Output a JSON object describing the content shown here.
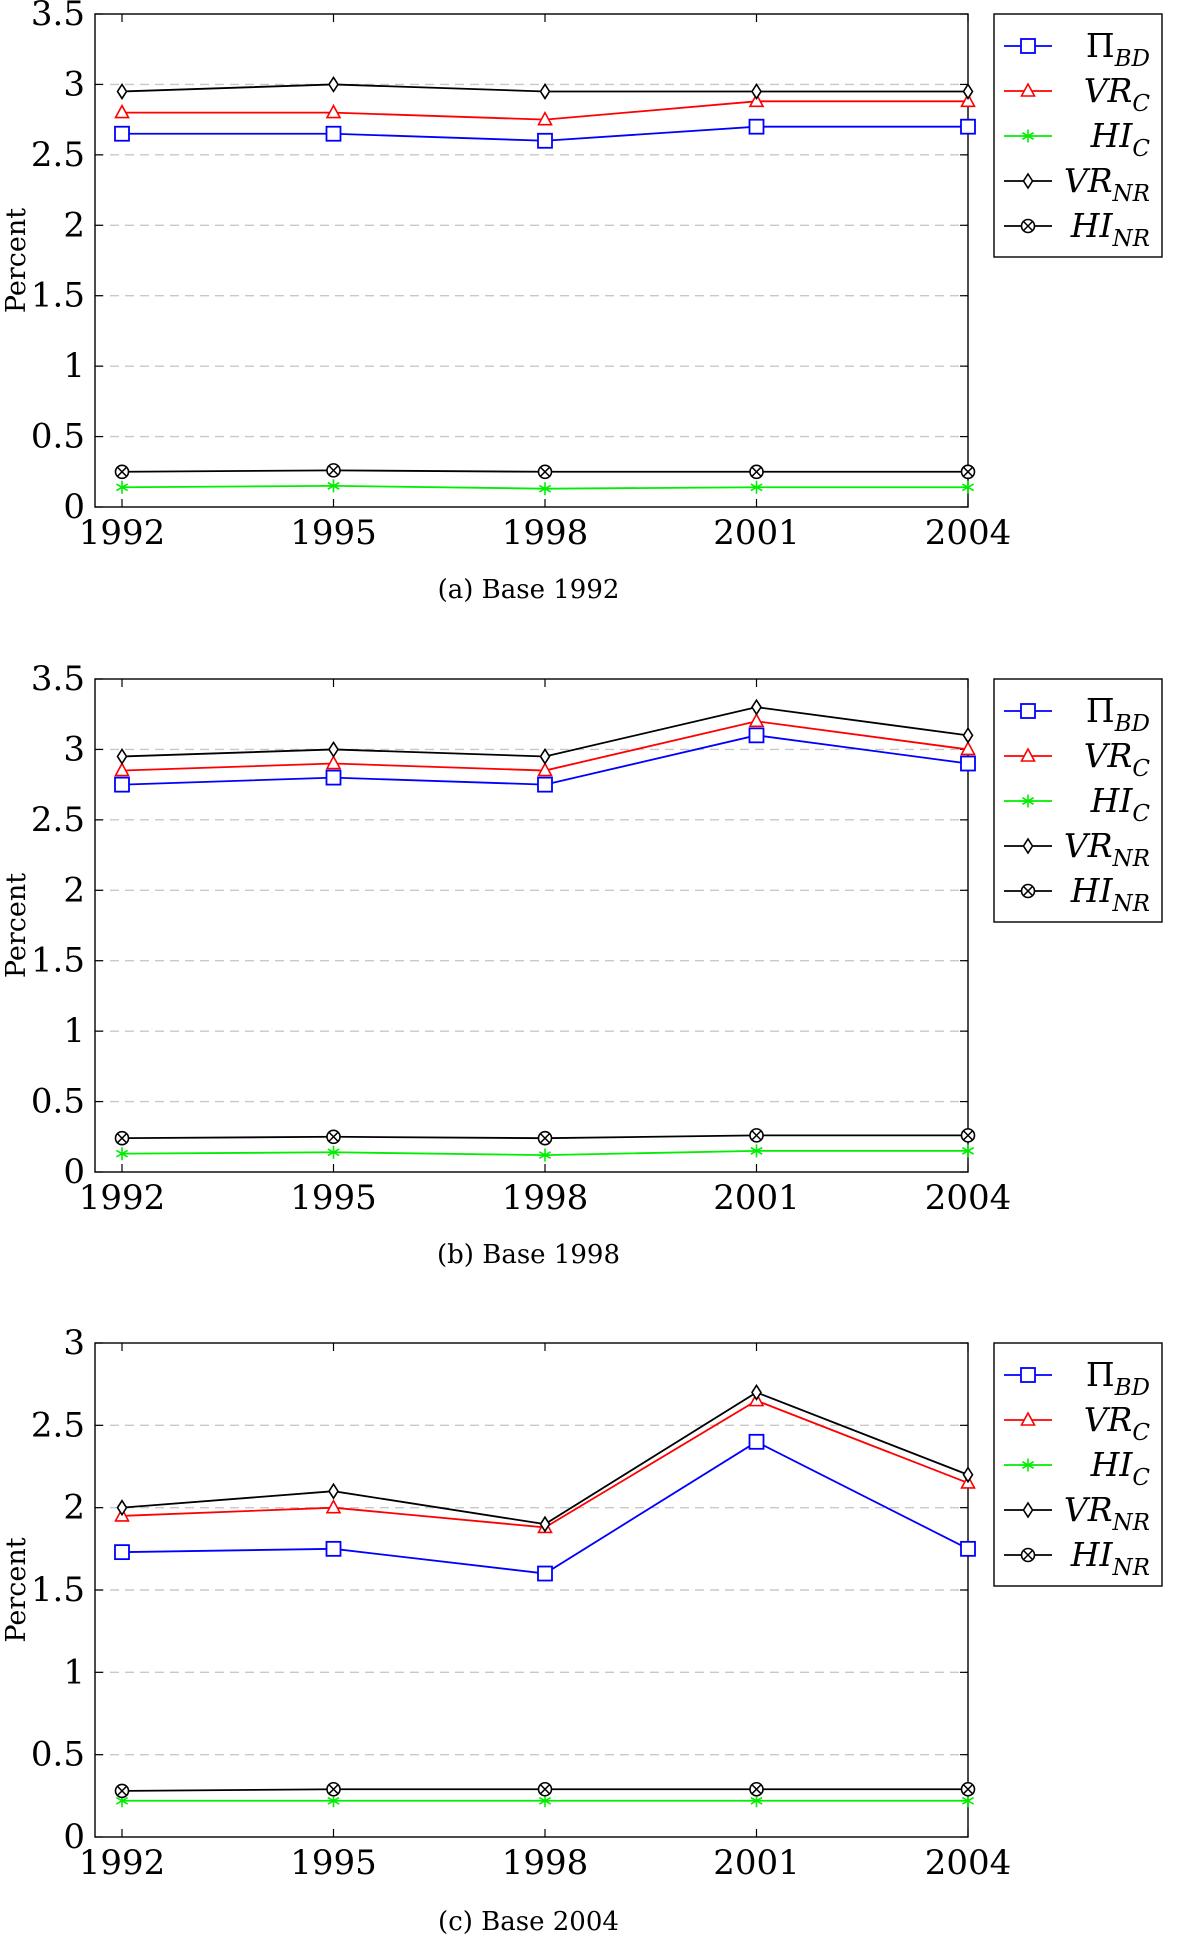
{
  "chart_data": [
    {
      "type": "line",
      "caption": "(a) Base 1992",
      "ylabel": "Percent",
      "x": [
        1992,
        1995,
        1998,
        2001,
        2004
      ],
      "ylim": [
        0,
        3.5
      ],
      "yticks": [
        0,
        0.5,
        1,
        1.5,
        2,
        2.5,
        3,
        3.5
      ],
      "ytick_labels": [
        "0",
        "0.5",
        "1",
        "1.5",
        "2",
        "2.5",
        "3",
        "3.5"
      ],
      "xtick_labels": [
        "1992",
        "1995",
        "1998",
        "2001",
        "2004"
      ],
      "grid": "horizontal dashed",
      "legend_position": "outside top-right",
      "series": [
        {
          "name": "Π",
          "sub": "BD",
          "color": "#0000ff",
          "marker": "square",
          "values": [
            2.65,
            2.65,
            2.6,
            2.7,
            2.7
          ]
        },
        {
          "name": "VR",
          "sub": "C",
          "color": "#ff0000",
          "marker": "triangle",
          "values": [
            2.8,
            2.8,
            2.75,
            2.88,
            2.88
          ]
        },
        {
          "name": "HI",
          "sub": "C",
          "color": "#00ee00",
          "marker": "star",
          "values": [
            0.14,
            0.15,
            0.13,
            0.14,
            0.14
          ]
        },
        {
          "name": "VR",
          "sub": "NR",
          "color": "#000000",
          "marker": "diamond",
          "values": [
            2.95,
            3.0,
            2.95,
            2.95,
            2.95
          ]
        },
        {
          "name": "HI",
          "sub": "NR",
          "color": "#000000",
          "marker": "otimes",
          "values": [
            0.25,
            0.26,
            0.25,
            0.25,
            0.25
          ]
        }
      ]
    },
    {
      "type": "line",
      "caption": "(b) Base 1998",
      "ylabel": "Percent",
      "x": [
        1992,
        1995,
        1998,
        2001,
        2004
      ],
      "ylim": [
        0,
        3.5
      ],
      "yticks": [
        0,
        0.5,
        1,
        1.5,
        2,
        2.5,
        3,
        3.5
      ],
      "ytick_labels": [
        "0",
        "0.5",
        "1",
        "1.5",
        "2",
        "2.5",
        "3",
        "3.5"
      ],
      "xtick_labels": [
        "1992",
        "1995",
        "1998",
        "2001",
        "2004"
      ],
      "grid": "horizontal dashed",
      "legend_position": "outside top-right",
      "series": [
        {
          "name": "Π",
          "sub": "BD",
          "color": "#0000ff",
          "marker": "square",
          "values": [
            2.75,
            2.8,
            2.75,
            3.1,
            2.9
          ]
        },
        {
          "name": "VR",
          "sub": "C",
          "color": "#ff0000",
          "marker": "triangle",
          "values": [
            2.85,
            2.9,
            2.85,
            3.2,
            3.0
          ]
        },
        {
          "name": "HI",
          "sub": "C",
          "color": "#00ee00",
          "marker": "star",
          "values": [
            0.13,
            0.14,
            0.12,
            0.15,
            0.15
          ]
        },
        {
          "name": "VR",
          "sub": "NR",
          "color": "#000000",
          "marker": "diamond",
          "values": [
            2.95,
            3.0,
            2.95,
            3.3,
            3.1
          ]
        },
        {
          "name": "HI",
          "sub": "NR",
          "color": "#000000",
          "marker": "otimes",
          "values": [
            0.24,
            0.25,
            0.24,
            0.26,
            0.26
          ]
        }
      ]
    },
    {
      "type": "line",
      "caption": "(c) Base 2004",
      "ylabel": "Percent",
      "x": [
        1992,
        1995,
        1998,
        2001,
        2004
      ],
      "ylim": [
        0,
        3
      ],
      "yticks": [
        0,
        0.5,
        1,
        1.5,
        2,
        2.5,
        3
      ],
      "ytick_labels": [
        "0",
        "0.5",
        "1",
        "1.5",
        "2",
        "2.5",
        "3"
      ],
      "xtick_labels": [
        "1992",
        "1995",
        "1998",
        "2001",
        "2004"
      ],
      "grid": "horizontal dashed",
      "legend_position": "outside top-right",
      "series": [
        {
          "name": "Π",
          "sub": "BD",
          "color": "#0000ff",
          "marker": "square",
          "values": [
            1.73,
            1.75,
            1.6,
            2.4,
            1.75
          ]
        },
        {
          "name": "VR",
          "sub": "C",
          "color": "#ff0000",
          "marker": "triangle",
          "values": [
            1.95,
            2.0,
            1.88,
            2.65,
            2.15
          ]
        },
        {
          "name": "HI",
          "sub": "C",
          "color": "#00ee00",
          "marker": "star",
          "values": [
            0.22,
            0.22,
            0.22,
            0.22,
            0.22
          ]
        },
        {
          "name": "VR",
          "sub": "NR",
          "color": "#000000",
          "marker": "diamond",
          "values": [
            2.0,
            2.1,
            1.9,
            2.7,
            2.2
          ]
        },
        {
          "name": "HI",
          "sub": "NR",
          "color": "#000000",
          "marker": "otimes",
          "values": [
            0.28,
            0.29,
            0.29,
            0.29,
            0.29
          ]
        }
      ]
    }
  ]
}
